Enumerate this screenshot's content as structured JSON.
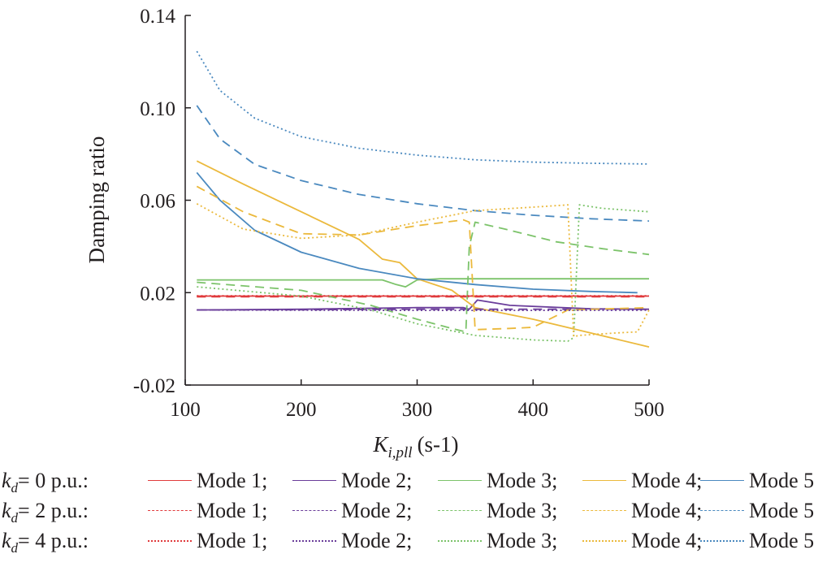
{
  "chart_data": {
    "type": "line",
    "title": "",
    "xlabel_main": "K",
    "xlabel_sub": "i,pll",
    "xlabel_unit": "(s-1)",
    "ylabel": "Damping ratio",
    "xlim": [
      100,
      500
    ],
    "ylim": [
      -0.02,
      0.14
    ],
    "x_ticks": [
      "100",
      "200",
      "300",
      "400",
      "500"
    ],
    "y_ticks": [
      "-0.02",
      "0.02",
      "0.06",
      "0.10",
      "0.14"
    ],
    "x_tick_values": [
      100,
      200,
      300,
      400,
      500
    ],
    "y_tick_values": [
      -0.02,
      0.02,
      0.06,
      0.1,
      0.14
    ],
    "legend_position": "bottom",
    "mode_colors": {
      "Mode 1": "#e03a3c",
      "Mode 2": "#6a3d9a",
      "Mode 3": "#7cc36a",
      "Mode 4": "#ebb93c",
      "Mode 5": "#4a89bf"
    },
    "groups": [
      {
        "label_var": "k",
        "label_sub": "d",
        "label_value": "= 0 p.u.:",
        "dash": "solid",
        "series": [
          {
            "name": "Mode 1",
            "sep": ";",
            "x": [
              110,
              500
            ],
            "y": [
              0.0185,
              0.0185
            ]
          },
          {
            "name": "Mode 2",
            "sep": ";",
            "x": [
              110,
              200,
              300,
              340,
              345,
              352,
              380,
              450,
              500
            ],
            "y": [
              0.0125,
              0.0128,
              0.0135,
              0.0135,
              0.0128,
              0.0168,
              0.0145,
              0.013,
              0.0128
            ]
          },
          {
            "name": "Mode 3",
            "sep": ";",
            "x": [
              110,
              270,
              282,
              290,
              300,
              320,
              500
            ],
            "y": [
              0.0255,
              0.0255,
              0.0235,
              0.0225,
              0.0255,
              0.026,
              0.026
            ]
          },
          {
            "name": "Mode 4",
            "sep": ";",
            "x": [
              110,
              150,
              200,
              250,
              270,
              285,
              300,
              330,
              350,
              400,
              450,
              500
            ],
            "y": [
              0.077,
              0.067,
              0.055,
              0.043,
              0.0345,
              0.033,
              0.026,
              0.021,
              0.0135,
              0.0085,
              0.0025,
              -0.0035
            ]
          },
          {
            "name": "Mode 5",
            "sep": "",
            "x": [
              110,
              130,
              160,
              200,
              250,
              300,
              350,
              400,
              450,
              490
            ],
            "y": [
              0.072,
              0.06,
              0.047,
              0.0375,
              0.0305,
              0.026,
              0.0235,
              0.0215,
              0.0205,
              0.02
            ]
          }
        ]
      },
      {
        "label_var": "k",
        "label_sub": "d",
        "label_value": "= 2 p.u.:",
        "dash": "dashed",
        "series": [
          {
            "name": "Mode 1",
            "sep": ";",
            "x": [
              110,
              500
            ],
            "y": [
              0.0182,
              0.0182
            ]
          },
          {
            "name": "Mode 2",
            "sep": ";",
            "x": [
              110,
              200,
              300,
              400,
              500
            ],
            "y": [
              0.0125,
              0.0126,
              0.0128,
              0.0128,
              0.0128
            ]
          },
          {
            "name": "Mode 3",
            "sep": ";",
            "x": [
              110,
              200,
              260,
              300,
              330,
              342,
              345,
              350,
              380,
              420,
              460,
              500
            ],
            "y": [
              0.0245,
              0.021,
              0.0145,
              0.0085,
              0.0045,
              0.003,
              0.04,
              0.0505,
              0.047,
              0.042,
              0.039,
              0.0365
            ]
          },
          {
            "name": "Mode 4",
            "sep": ";",
            "x": [
              110,
              150,
              200,
              250,
              300,
              340,
              345,
              350,
              380,
              400,
              430,
              500
            ],
            "y": [
              0.066,
              0.055,
              0.0455,
              0.045,
              0.049,
              0.0515,
              0.0505,
              0.004,
              0.0045,
              0.005,
              0.0125,
              0.0135
            ]
          },
          {
            "name": "Mode 5",
            "sep": "",
            "x": [
              110,
              130,
              160,
              200,
              250,
              300,
              350,
              400,
              450,
              500
            ],
            "y": [
              0.101,
              0.0865,
              0.0755,
              0.0685,
              0.0625,
              0.0585,
              0.0555,
              0.0535,
              0.052,
              0.051
            ]
          }
        ]
      },
      {
        "label_var": "k",
        "label_sub": "d",
        "label_value": "= 4 p.u.:",
        "dash": "dotted",
        "series": [
          {
            "name": "Mode 1",
            "sep": ";",
            "x": [
              110,
              500
            ],
            "y": [
              0.0186,
              0.0186
            ]
          },
          {
            "name": "Mode 2",
            "sep": ";",
            "x": [
              110,
              200,
              300,
              400,
              500
            ],
            "y": [
              0.0125,
              0.0124,
              0.0123,
              0.0123,
              0.0124
            ]
          },
          {
            "name": "Mode 3",
            "sep": ";",
            "x": [
              110,
              200,
              260,
              300,
              350,
              400,
              430,
              435,
              440,
              460,
              500
            ],
            "y": [
              0.0225,
              0.0185,
              0.0125,
              0.0065,
              0.0015,
              -0.0005,
              -0.001,
              0.0005,
              0.058,
              0.0565,
              0.055
            ]
          },
          {
            "name": "Mode 4",
            "sep": ";",
            "x": [
              110,
              150,
              200,
              250,
              300,
              350,
              400,
              430,
              435,
              440,
              470,
              490,
              500
            ],
            "y": [
              0.0585,
              0.0475,
              0.0435,
              0.045,
              0.0505,
              0.0555,
              0.057,
              0.058,
              0.001,
              0.0015,
              0.0025,
              0.003,
              0.0125
            ]
          },
          {
            "name": "Mode 5",
            "sep": "",
            "x": [
              110,
              130,
              160,
              200,
              250,
              300,
              350,
              400,
              450,
              500
            ],
            "y": [
              0.1245,
              0.1075,
              0.0955,
              0.0875,
              0.0825,
              0.0795,
              0.0775,
              0.0765,
              0.076,
              0.0757
            ]
          }
        ]
      }
    ]
  }
}
